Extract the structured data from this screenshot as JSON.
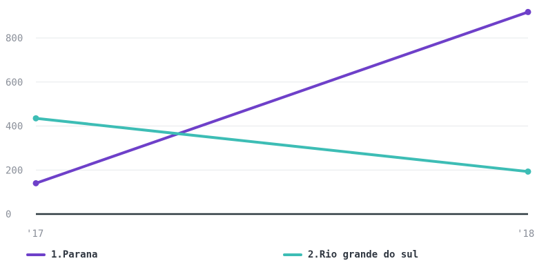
{
  "chart_data": {
    "type": "line",
    "title": "",
    "xlabel": "",
    "ylabel": "",
    "x": [
      "'17",
      "'18"
    ],
    "ylim": [
      0,
      950
    ],
    "yticks": [
      0,
      200,
      400,
      600,
      800
    ],
    "grid": true,
    "legend_position": "bottom",
    "series": [
      {
        "name": "1.Parana",
        "values": [
          140,
          918
        ],
        "color": "#6e40c9"
      },
      {
        "name": "2.Rio grande do sul",
        "values": [
          435,
          193
        ],
        "color": "#3dbdb5"
      }
    ]
  }
}
